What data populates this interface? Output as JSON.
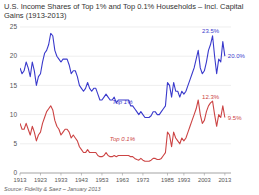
{
  "chart_data": {
    "type": "line",
    "title": "U.S. Income Shares of Top 1% and Top 0.1% Households – Incl. Capital Gains (1913-2013)",
    "source": "Source: Fidelity & Saez – January 2013",
    "xlim": [
      1913,
      2016
    ],
    "ylim": [
      0,
      25
    ],
    "xticks": [
      1913,
      1923,
      1933,
      1943,
      1953,
      1963,
      1973,
      1985,
      1993,
      2003,
      2013
    ],
    "yticks": [
      0,
      5,
      10,
      15,
      20,
      25
    ],
    "grid": "y",
    "x": [
      1913,
      1914,
      1915,
      1916,
      1917,
      1918,
      1919,
      1920,
      1921,
      1922,
      1923,
      1924,
      1925,
      1926,
      1927,
      1928,
      1929,
      1930,
      1931,
      1932,
      1933,
      1934,
      1935,
      1936,
      1937,
      1938,
      1939,
      1940,
      1941,
      1942,
      1943,
      1944,
      1945,
      1946,
      1947,
      1948,
      1949,
      1950,
      1951,
      1952,
      1953,
      1954,
      1955,
      1956,
      1957,
      1958,
      1959,
      1960,
      1961,
      1962,
      1963,
      1964,
      1965,
      1966,
      1967,
      1968,
      1969,
      1970,
      1971,
      1972,
      1973,
      1974,
      1975,
      1976,
      1977,
      1978,
      1979,
      1980,
      1981,
      1982,
      1983,
      1984,
      1985,
      1986,
      1987,
      1988,
      1989,
      1990,
      1991,
      1992,
      1993,
      1994,
      1995,
      1996,
      1997,
      1998,
      1999,
      2000,
      2001,
      2002,
      2003,
      2004,
      2005,
      2006,
      2007,
      2008,
      2009,
      2010,
      2011,
      2012,
      2013
    ],
    "series": [
      {
        "name": "Top 1%",
        "color": "#3a3acc",
        "values": [
          18.0,
          17.0,
          17.5,
          19.0,
          18.0,
          16.5,
          19.0,
          17.5,
          15.0,
          16.5,
          17.0,
          19.0,
          20.5,
          21.0,
          22.0,
          23.9,
          23.5,
          21.0,
          20.0,
          19.5,
          19.0,
          19.5,
          19.5,
          19.5,
          18.5,
          17.0,
          17.5,
          17.5,
          16.5,
          15.0,
          14.5,
          14.0,
          14.5,
          15.5,
          14.5,
          14.0,
          14.5,
          14.5,
          13.5,
          12.5,
          12.5,
          13.0,
          13.5,
          13.0,
          12.5,
          12.5,
          13.0,
          12.0,
          12.5,
          12.5,
          12.5,
          12.5,
          12.5,
          12.5,
          11.5,
          11.5,
          11.0,
          10.5,
          10.0,
          10.5,
          10.0,
          9.5,
          9.5,
          9.5,
          9.8,
          10.5,
          10.5,
          10.0,
          10.0,
          10.5,
          11.0,
          11.5,
          15.5,
          15.0,
          13.0,
          15.5,
          14.0,
          14.0,
          13.0,
          14.0,
          13.5,
          14.0,
          15.0,
          16.0,
          17.0,
          18.0,
          19.5,
          21.0,
          18.0,
          17.0,
          17.5,
          19.0,
          21.0,
          22.0,
          23.5,
          20.0,
          17.0,
          19.5,
          19.0,
          22.5,
          20.0
        ]
      },
      {
        "name": "Top 0.1%",
        "color": "#cc4444",
        "values": [
          8.5,
          7.5,
          7.5,
          8.5,
          7.5,
          6.5,
          8.0,
          7.0,
          5.5,
          6.5,
          7.0,
          8.5,
          9.5,
          10.5,
          11.0,
          11.5,
          10.8,
          9.0,
          8.0,
          7.5,
          6.5,
          7.0,
          7.5,
          7.5,
          7.0,
          6.0,
          6.5,
          6.0,
          5.5,
          4.5,
          4.0,
          3.5,
          3.5,
          4.0,
          3.5,
          3.5,
          3.5,
          3.5,
          3.0,
          2.8,
          2.8,
          3.0,
          3.5,
          3.0,
          2.8,
          2.8,
          3.0,
          2.8,
          3.0,
          3.0,
          3.0,
          3.0,
          3.0,
          3.0,
          2.8,
          2.8,
          2.5,
          2.3,
          2.2,
          2.5,
          2.2,
          2.0,
          2.0,
          2.0,
          2.2,
          2.5,
          2.5,
          2.3,
          2.3,
          2.5,
          3.0,
          3.5,
          7.0,
          6.5,
          4.5,
          7.0,
          6.0,
          5.5,
          5.0,
          6.0,
          5.5,
          6.0,
          7.0,
          8.0,
          9.0,
          10.0,
          11.0,
          12.5,
          10.0,
          8.5,
          9.0,
          10.5,
          11.5,
          12.0,
          12.3,
          10.0,
          8.0,
          10.0,
          9.5,
          11.5,
          9.5
        ]
      }
    ],
    "series_labels": [
      {
        "series": 0,
        "x": 1963,
        "y": 11.8
      },
      {
        "series": 1,
        "x": 1963,
        "y": 5.5
      }
    ],
    "annotations": [
      {
        "series": 0,
        "text": "23.5%",
        "x": 2007,
        "y": 23.5
      },
      {
        "series": 0,
        "text": "20.0%",
        "x": 2013,
        "y": 20.0
      },
      {
        "series": 1,
        "text": "12.3%",
        "x": 2007,
        "y": 12.3
      },
      {
        "series": 1,
        "text": "9.5%",
        "x": 2013,
        "y": 9.5
      }
    ]
  }
}
